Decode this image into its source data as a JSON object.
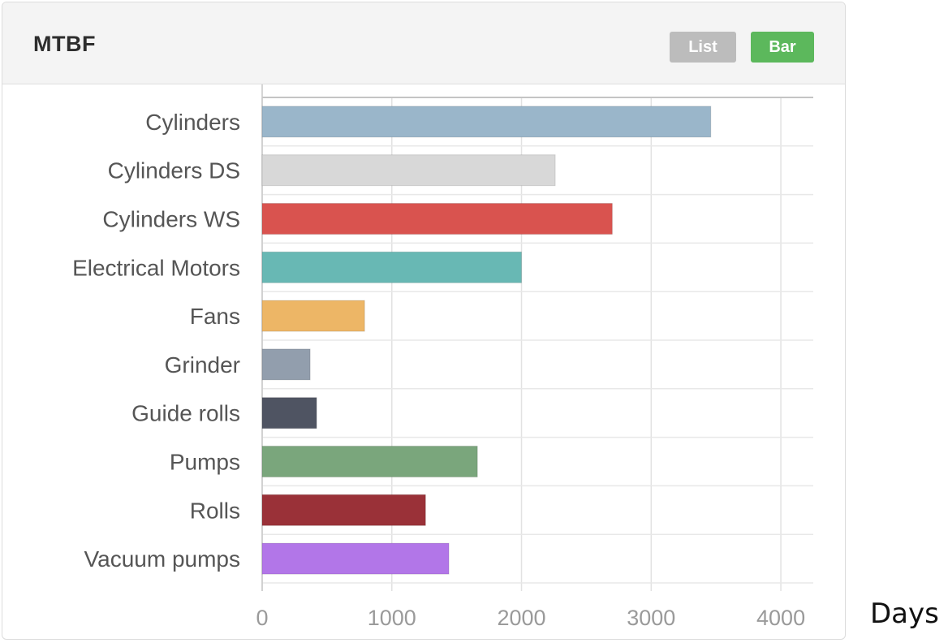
{
  "panel": {
    "title": "MTBF",
    "buttons": {
      "list_label": "List",
      "bar_label": "Bar"
    },
    "colors": {
      "list_button": "#bcbcbc",
      "bar_button_active": "#5cb85c"
    }
  },
  "unit_label": "Days",
  "chart_data": {
    "type": "bar",
    "orientation": "horizontal",
    "title": "MTBF",
    "xlabel": "Days",
    "ylabel": "",
    "xlim": [
      0,
      4250
    ],
    "xticks": [
      0,
      1000,
      2000,
      3000,
      4000
    ],
    "grid": true,
    "categories": [
      "Cylinders",
      "Cylinders DS",
      "Cylinders WS",
      "Electrical Motors",
      "Fans",
      "Grinder",
      "Guide rolls",
      "Pumps",
      "Rolls",
      "Vacuum pumps"
    ],
    "values": [
      3460,
      2260,
      2700,
      2000,
      790,
      370,
      420,
      1660,
      1260,
      1440
    ],
    "colors": [
      "#9ab6ca",
      "#d8d8d8",
      "#d9534f",
      "#68b8b4",
      "#edb666",
      "#929ead",
      "#4f5462",
      "#7aa67c",
      "#9a3138",
      "#b276e8"
    ]
  }
}
